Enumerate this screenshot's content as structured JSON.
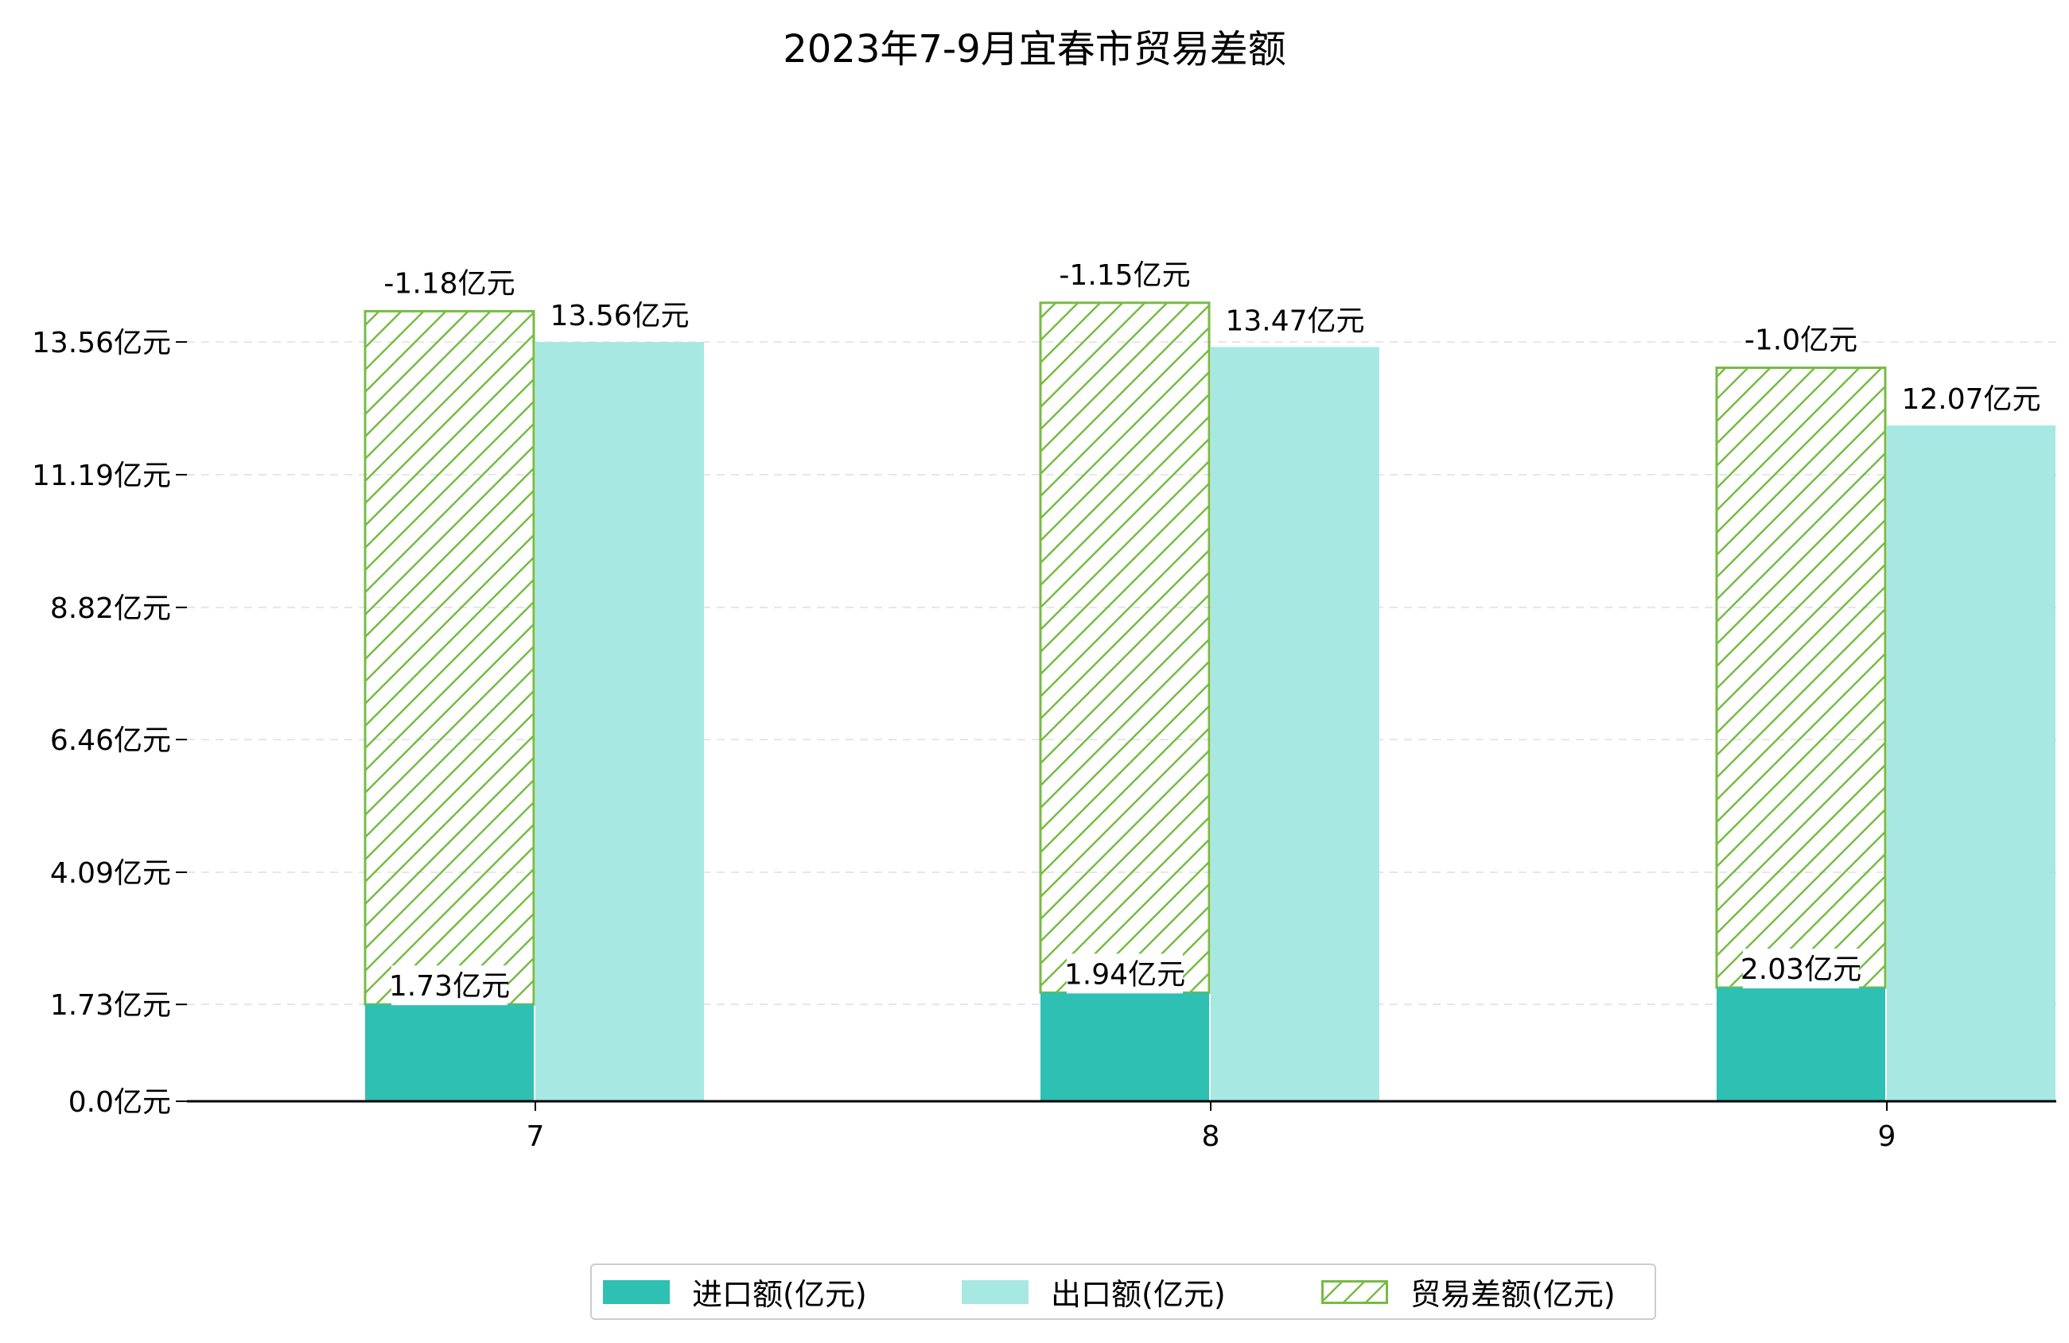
{
  "chart_data": {
    "type": "bar",
    "title": "2023年7-9月宜春市贸易差额",
    "categories": [
      "7",
      "8",
      "9"
    ],
    "ylim": [
      0,
      17.2
    ],
    "yticks": [
      "0.0亿元",
      "1.73亿元",
      "4.09亿元",
      "6.46亿元",
      "8.82亿元",
      "11.19亿元",
      "13.56亿元"
    ],
    "ytick_values": [
      0.0,
      1.73,
      4.09,
      6.46,
      8.82,
      11.19,
      13.56
    ],
    "grid": true,
    "legend_position": "bottom-center",
    "series": [
      {
        "name": "进口额(亿元)",
        "values": [
          1.73,
          1.94,
          2.03
        ],
        "labels": [
          "1.73亿元",
          "1.94亿元",
          "2.03亿元"
        ],
        "color": "#2ec0b2"
      },
      {
        "name": "出口额(亿元)",
        "values": [
          13.56,
          13.47,
          12.07
        ],
        "labels": [
          "13.56亿元",
          "13.47亿元",
          "12.07亿元"
        ],
        "color": "#a8e8e2"
      },
      {
        "name": "贸易差额(亿元)",
        "values": [
          -1.18,
          -1.15,
          -1.0
        ],
        "labels": [
          "-1.18亿元",
          "-1.15亿元",
          "-1.0亿元"
        ],
        "color": "#77bb44",
        "hatch": true
      }
    ]
  }
}
